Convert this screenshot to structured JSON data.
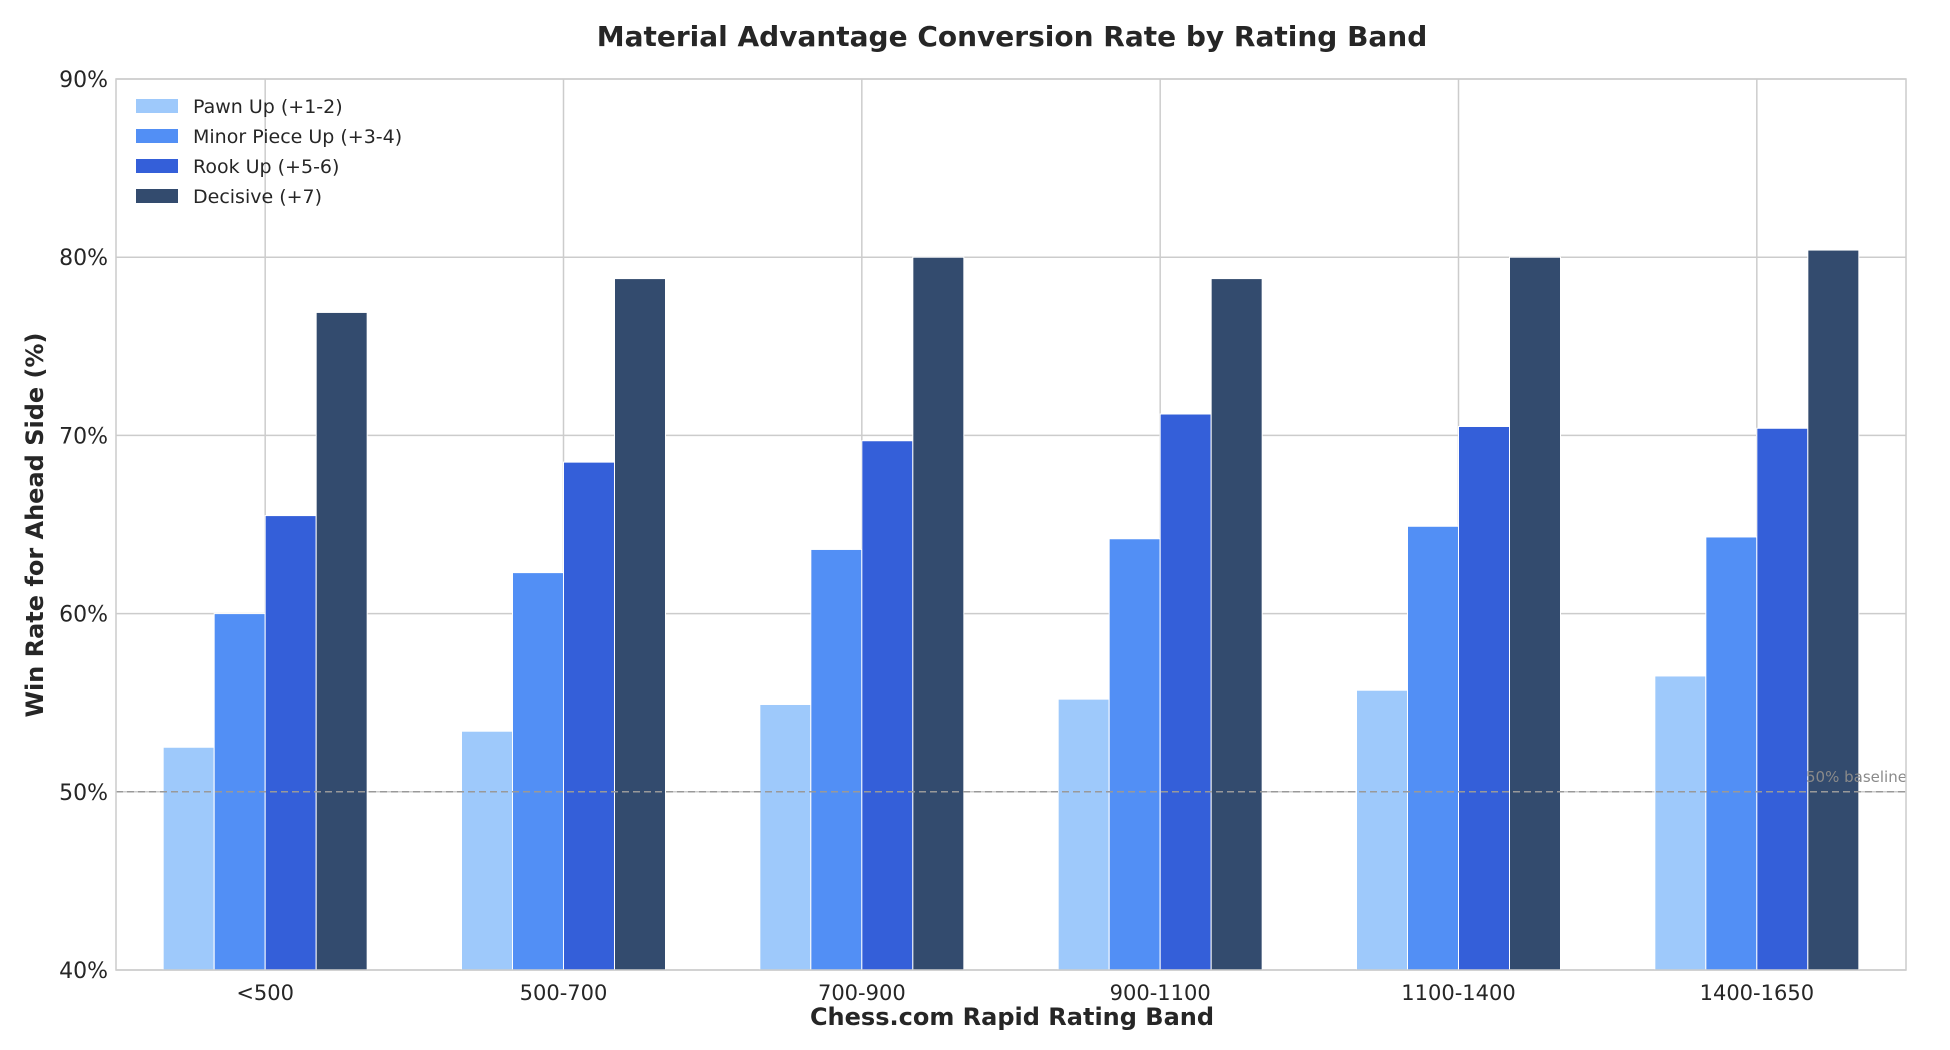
{
  "chart_data": {
    "type": "bar",
    "title": "Material Advantage Conversion Rate by Rating Band",
    "xlabel": "Chess.com Rapid Rating Band",
    "ylabel": "Win Rate for Ahead Side (%)",
    "categories": [
      "<500",
      "500-700",
      "700-900",
      "900-1100",
      "1100-1400",
      "1400-1650"
    ],
    "ylim": [
      40,
      90
    ],
    "yticks": [
      40,
      50,
      60,
      70,
      80,
      90
    ],
    "ytick_labels": [
      "40%",
      "50%",
      "60%",
      "70%",
      "80%",
      "90%"
    ],
    "grid": true,
    "legend_position": "top-left",
    "series": [
      {
        "name": "Pawn Up (+1-2)",
        "color": "#9ec9fb",
        "values": [
          52.5,
          53.4,
          54.9,
          55.2,
          55.7,
          56.5
        ]
      },
      {
        "name": "Minor Piece Up (+3-4)",
        "color": "#528ff5",
        "values": [
          60.0,
          62.3,
          63.6,
          64.2,
          64.9,
          64.3
        ]
      },
      {
        "name": "Rook Up (+5-6)",
        "color": "#345fd9",
        "values": [
          65.5,
          68.5,
          69.7,
          71.2,
          70.5,
          70.4
        ]
      },
      {
        "name": "Decisive (+7)",
        "color": "#334b6e",
        "values": [
          76.9,
          78.8,
          80.0,
          78.8,
          80.0,
          80.4
        ]
      }
    ],
    "reference_line": {
      "value": 50,
      "label": "50% baseline",
      "color": "#999999"
    }
  }
}
